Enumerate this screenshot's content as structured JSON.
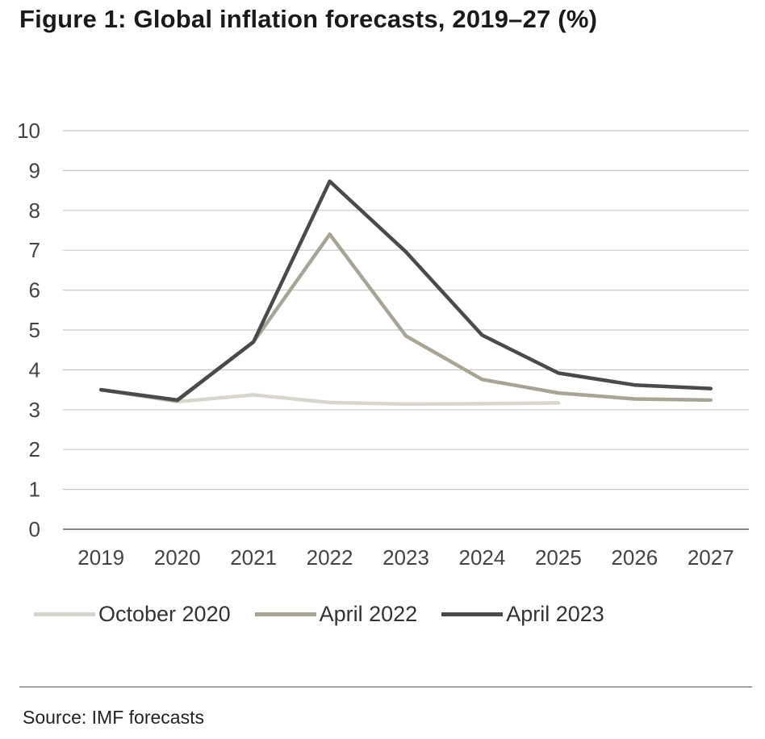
{
  "colors": {
    "gridline": "#c8c8c8",
    "axis": "#888888",
    "tick_text": "#444444"
  },
  "chart_data": {
    "type": "line",
    "title": "Figure 1: Global inflation forecasts, 2019–27 (%)",
    "xlabel": "",
    "ylabel": "",
    "categories": [
      "2019",
      "2020",
      "2021",
      "2022",
      "2023",
      "2024",
      "2025",
      "2026",
      "2027"
    ],
    "ylim": [
      0,
      10
    ],
    "yticks": [
      "0",
      "1",
      "2",
      "3",
      "4",
      "5",
      "6",
      "7",
      "8",
      "9",
      "10"
    ],
    "grid": true,
    "legend_position": "bottom",
    "series": [
      {
        "name": "October 2020",
        "color": "#d8d6cc",
        "values": [
          3.5,
          3.2,
          3.37,
          3.18,
          3.14,
          3.15,
          3.17,
          null,
          null
        ]
      },
      {
        "name": "April 2022",
        "color": "#a8a596",
        "values": [
          3.5,
          3.22,
          4.7,
          7.4,
          4.85,
          3.76,
          3.42,
          3.27,
          3.24
        ]
      },
      {
        "name": "April 2023",
        "color": "#4a4a4c",
        "values": [
          3.5,
          3.24,
          4.7,
          8.73,
          6.96,
          4.87,
          3.92,
          3.62,
          3.53
        ]
      }
    ]
  },
  "source": "Source: IMF forecasts"
}
